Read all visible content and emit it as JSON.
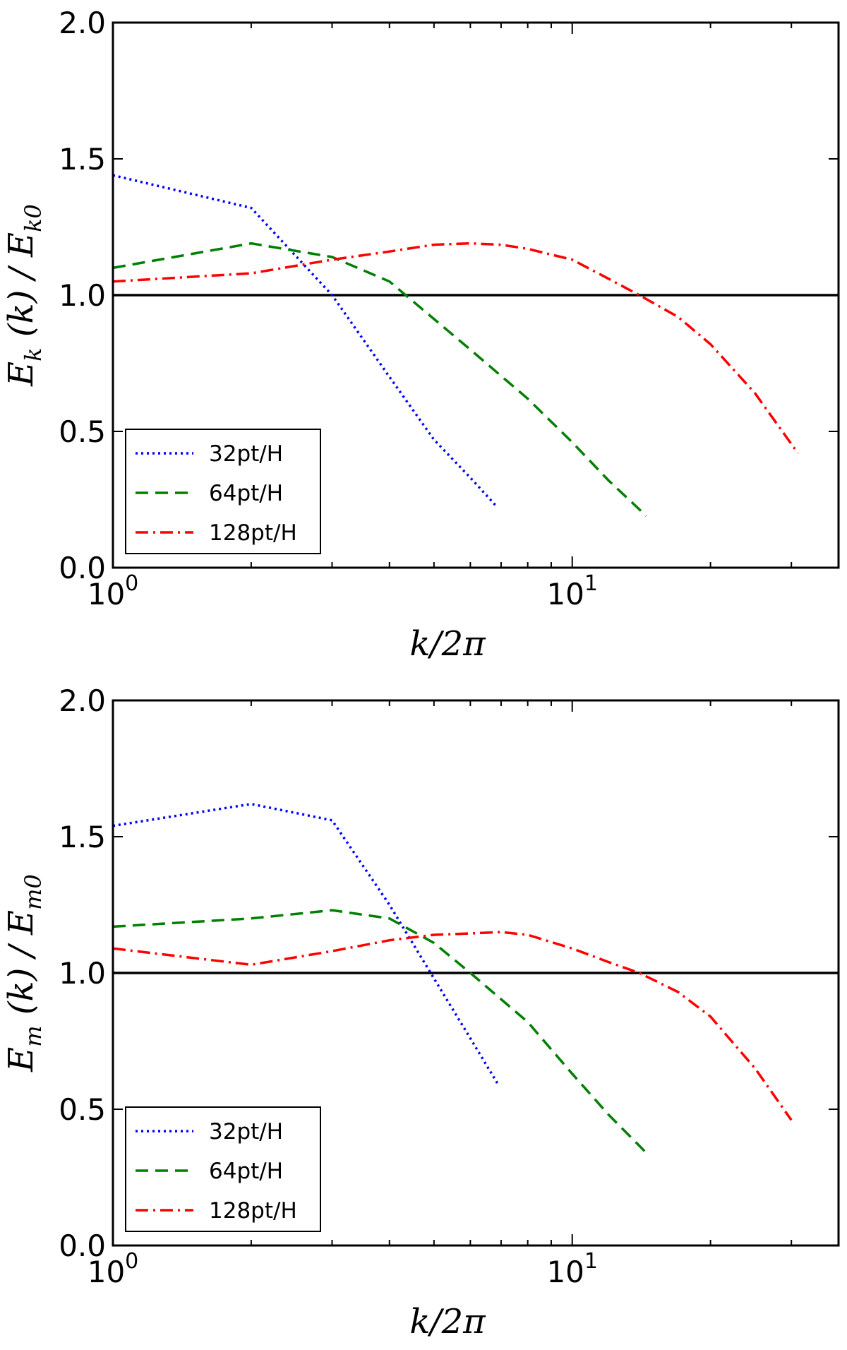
{
  "chart_data": [
    {
      "type": "line",
      "ylabel": "E_k(k)/E_k0",
      "ylabel_parts": {
        "main": "E",
        "sub": "k",
        "mid": " (k) / E",
        "sub2": "k0"
      },
      "xlabel": "k/2π",
      "x_scale": "log",
      "xlim": [
        1,
        38
      ],
      "ylim": [
        0,
        2
      ],
      "y_ticks": [
        0.0,
        0.5,
        1.0,
        1.5,
        2.0
      ],
      "y_tick_labels": [
        "0.0",
        "0.5",
        "1.0",
        "1.5",
        "2.0"
      ],
      "x_ticks": [
        1,
        10
      ],
      "x_tick_labels": [
        {
          "base": "10",
          "exp": "0"
        },
        {
          "base": "10",
          "exp": "1"
        }
      ],
      "reference_line": 1.0,
      "legend_position": "lower-left",
      "series": [
        {
          "name": "32pt/H",
          "color": "#0000ff",
          "style": "dotted",
          "x": [
            1,
            2,
            3,
            4,
            5,
            6,
            6.8
          ],
          "y": [
            1.44,
            1.32,
            1.0,
            0.7,
            0.47,
            0.33,
            0.23
          ]
        },
        {
          "name": "64pt/H",
          "color": "#007f00",
          "style": "dashed",
          "x": [
            1,
            2,
            3,
            4,
            6,
            8,
            10,
            12,
            14.5
          ],
          "y": [
            1.1,
            1.19,
            1.14,
            1.05,
            0.8,
            0.62,
            0.46,
            0.32,
            0.19
          ]
        },
        {
          "name": "128pt/H",
          "color": "#ff0000",
          "style": "dashdot",
          "x": [
            1,
            2,
            3,
            4,
            5,
            6,
            7,
            8,
            10,
            12,
            14,
            17,
            20,
            25,
            31
          ],
          "y": [
            1.05,
            1.08,
            1.13,
            1.16,
            1.185,
            1.19,
            1.185,
            1.17,
            1.13,
            1.06,
            1.0,
            0.92,
            0.82,
            0.64,
            0.42
          ]
        }
      ]
    },
    {
      "type": "line",
      "ylabel": "E_m(k)/E_m0",
      "ylabel_parts": {
        "main": "E",
        "sub": "m",
        "mid": " (k) / E",
        "sub2": "m0"
      },
      "xlabel": "k/2π",
      "x_scale": "log",
      "xlim": [
        1,
        38
      ],
      "ylim": [
        0,
        2
      ],
      "y_ticks": [
        0.0,
        0.5,
        1.0,
        1.5,
        2.0
      ],
      "y_tick_labels": [
        "0.0",
        "0.5",
        "1.0",
        "1.5",
        "2.0"
      ],
      "x_ticks": [
        1,
        10
      ],
      "x_tick_labels": [
        {
          "base": "10",
          "exp": "0"
        },
        {
          "base": "10",
          "exp": "1"
        }
      ],
      "reference_line": 1.0,
      "legend_position": "lower-left",
      "series": [
        {
          "name": "32pt/H",
          "color": "#0000ff",
          "style": "dotted",
          "x": [
            1,
            2,
            3,
            4,
            5,
            6,
            6.9
          ],
          "y": [
            1.54,
            1.62,
            1.56,
            1.25,
            0.98,
            0.76,
            0.59
          ]
        },
        {
          "name": "64pt/H",
          "color": "#007f00",
          "style": "dashed",
          "x": [
            1,
            2,
            3,
            4,
            5,
            6,
            8,
            10,
            12,
            14.5
          ],
          "y": [
            1.17,
            1.2,
            1.23,
            1.2,
            1.11,
            1.0,
            0.82,
            0.63,
            0.48,
            0.34
          ]
        },
        {
          "name": "128pt/H",
          "color": "#ff0000",
          "style": "dashdot",
          "x": [
            1,
            2,
            3,
            4,
            5,
            6,
            7,
            8,
            10,
            12,
            14,
            17,
            20,
            25,
            30
          ],
          "y": [
            1.09,
            1.03,
            1.08,
            1.12,
            1.14,
            1.145,
            1.15,
            1.14,
            1.09,
            1.04,
            1.0,
            0.93,
            0.84,
            0.65,
            0.46
          ]
        }
      ]
    }
  ]
}
